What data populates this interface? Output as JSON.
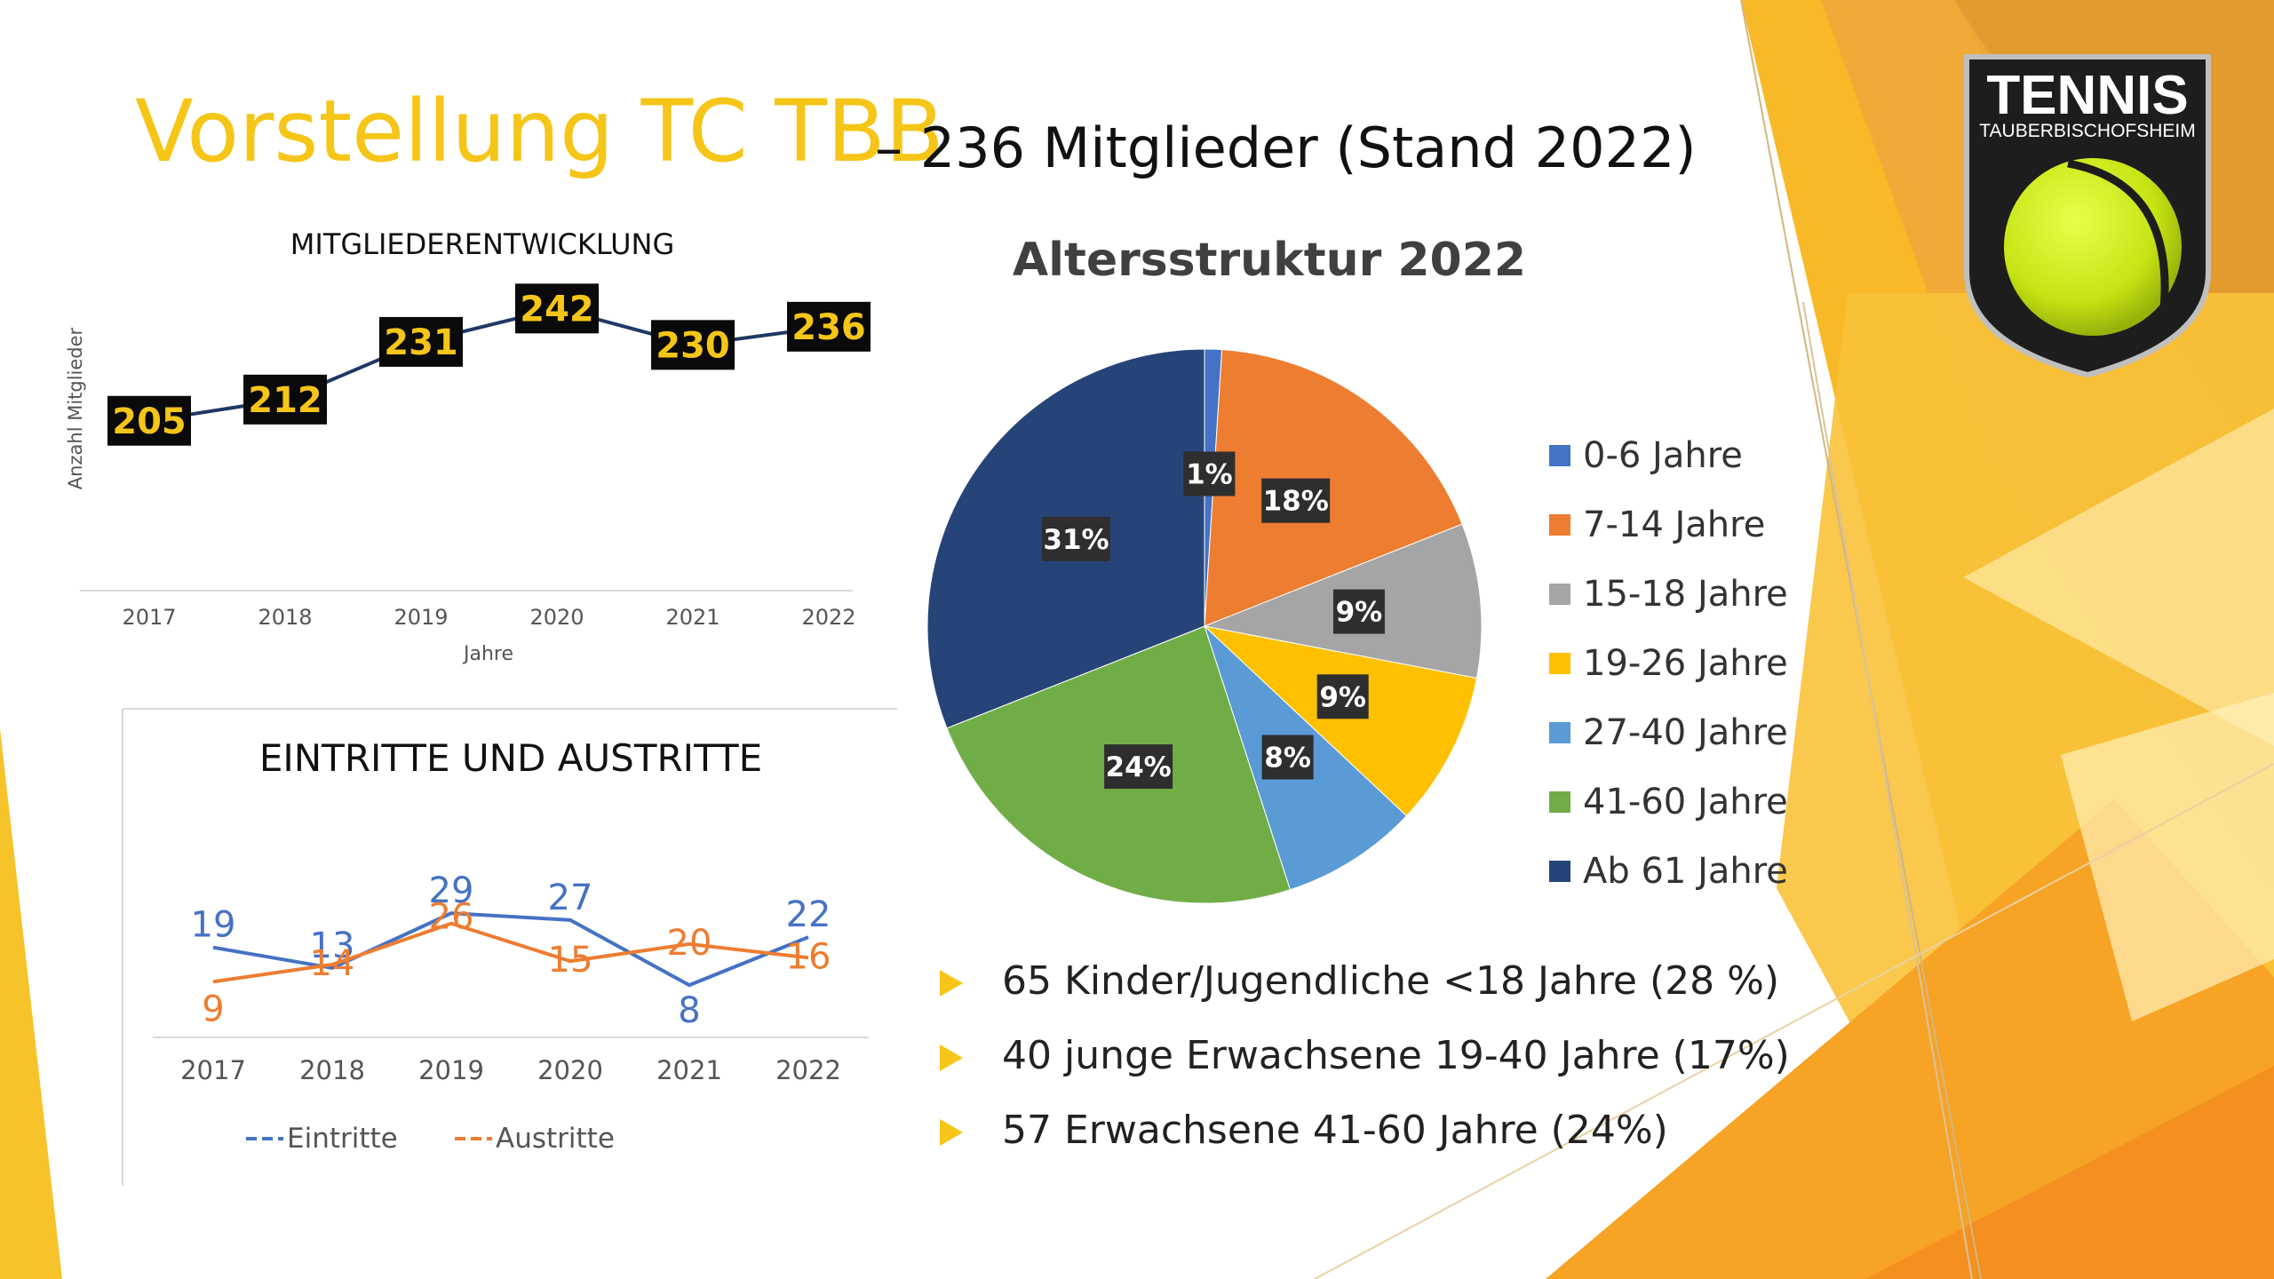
{
  "slide": {
    "title_main": "Vorstellung TC TBB",
    "title_sub": "– 236 Mitglieder (Stand 2022)"
  },
  "logo": {
    "word": "TENNIS",
    "subword": "TAUBERBISCHOFSHEIM"
  },
  "colors": {
    "title_yellow": "#f5c518",
    "line_dark": "#1f3864",
    "eintritte_blue": "#4472c4",
    "austritte_orange": "#ed7d31"
  },
  "bullets": [
    "65 Kinder/Jugendliche <18 Jahre (28 %)",
    "40 junge Erwachsene 19-40 Jahre (17%)",
    "57 Erwachsene 41-60 Jahre (24%)"
  ],
  "chart_data": [
    {
      "type": "line",
      "title": "MITGLIEDERENTWICKLUNG",
      "xlabel": "Jahre",
      "ylabel": "Anzahl Mitglieder",
      "categories": [
        "2017",
        "2018",
        "2019",
        "2020",
        "2021",
        "2022"
      ],
      "series": [
        {
          "values": [
            205,
            212,
            231,
            242,
            230,
            236
          ],
          "color": "#1f3864"
        }
      ],
      "data_labels": [
        "205",
        "212",
        "231",
        "242",
        "230",
        "236"
      ],
      "ylim": [
        190,
        250
      ],
      "grid": false,
      "legend": "none"
    },
    {
      "type": "line",
      "title": "EINTRITTE UND AUSTRITTE",
      "categories": [
        "2017",
        "2018",
        "2019",
        "2020",
        "2021",
        "2022"
      ],
      "series": [
        {
          "name": "Eintritte",
          "values": [
            19,
            13,
            29,
            27,
            8,
            22
          ],
          "color": "#4472c4"
        },
        {
          "name": "Austritte",
          "values": [
            9,
            14,
            26,
            15,
            20,
            16
          ],
          "color": "#ed7d31"
        }
      ],
      "ylim": [
        0,
        35
      ],
      "grid": false,
      "legend": "bottom"
    },
    {
      "type": "pie",
      "title": "Altersstruktur 2022",
      "categories": [
        "0-6 Jahre",
        "7-14 Jahre",
        "15-18 Jahre",
        "19-26 Jahre",
        "27-40 Jahre",
        "41-60 Jahre",
        "Ab 61 Jahre"
      ],
      "values": [
        1,
        18,
        9,
        9,
        8,
        24,
        31
      ],
      "data_labels": [
        "1%",
        "18%",
        "9%",
        "9%",
        "8%",
        "24%",
        "31%"
      ],
      "colors": [
        "#4472c4",
        "#ed7d31",
        "#a5a5a5",
        "#ffc000",
        "#5b9bd5",
        "#70ad47",
        "#264478"
      ],
      "legend": "right"
    }
  ]
}
